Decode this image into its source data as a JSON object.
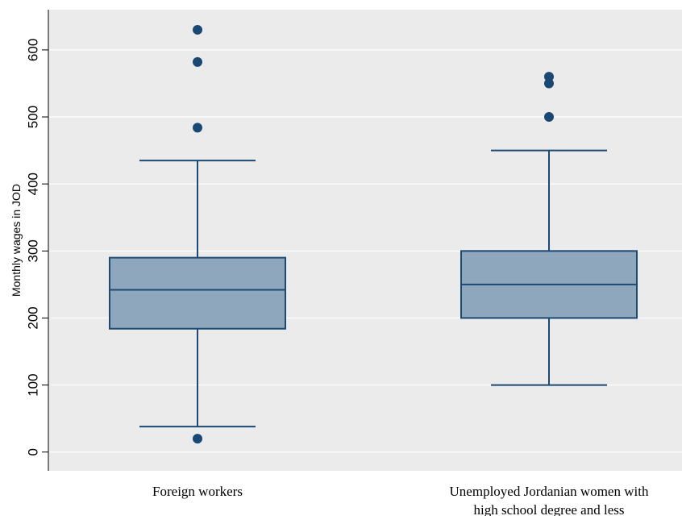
{
  "chart_data": {
    "type": "box",
    "title": "",
    "xlabel": "",
    "ylabel": "Monthly wages in JOD",
    "ylim": [
      -28,
      660
    ],
    "yticks": [
      0,
      100,
      200,
      300,
      400,
      500,
      600
    ],
    "grid": true,
    "legend": "none",
    "categories": [
      [
        "Foreign workers"
      ],
      [
        "Unemployed Jordanian women with",
        "high school degree and less"
      ]
    ],
    "boxes": [
      {
        "whisker_low": 38,
        "q1": 184,
        "median": 242,
        "q3": 290,
        "whisker_high": 435,
        "outliers": [
          20,
          484,
          582,
          630
        ]
      },
      {
        "whisker_low": 100,
        "q1": 200,
        "median": 250,
        "q3": 300,
        "whisker_high": 450,
        "outliers": [
          500,
          550,
          560
        ]
      }
    ],
    "colors": {
      "plot_background": "#ebebeb",
      "box_fill": "#8fa7bd",
      "box_stroke": "#1c4a72",
      "outlier": "#1a4874",
      "grid": "#ffffff"
    }
  }
}
